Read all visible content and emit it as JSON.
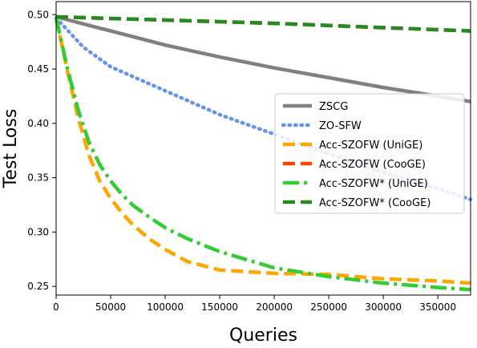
{
  "chart_data": {
    "type": "line",
    "xlabel": "Queries",
    "ylabel": "Test Loss",
    "xlim": [
      0,
      380000
    ],
    "ylim": [
      0.242,
      0.512
    ],
    "x_ticks": [
      0,
      50000,
      100000,
      150000,
      200000,
      250000,
      300000,
      350000
    ],
    "x_tick_labels": [
      "0",
      "50000",
      "100000",
      "150000",
      "200000",
      "250000",
      "300000",
      "350000"
    ],
    "y_ticks": [
      0.25,
      0.3,
      0.35,
      0.4,
      0.45,
      0.5
    ],
    "y_tick_labels": [
      "0.25",
      "0.30",
      "0.35",
      "0.40",
      "0.45",
      "0.50"
    ],
    "grid": false,
    "legend_position": "right",
    "series": [
      {
        "name": "ZSCG",
        "color": "#808080",
        "style": "solid",
        "x": [
          0,
          50000,
          100000,
          150000,
          200000,
          250000,
          300000,
          350000,
          380000
        ],
        "y": [
          0.498,
          0.485,
          0.472,
          0.461,
          0.451,
          0.442,
          0.433,
          0.425,
          0.42
        ]
      },
      {
        "name": "ZO-SFW",
        "color": "#6495ED",
        "style": "dotted",
        "x": [
          0,
          25000,
          50000,
          100000,
          150000,
          200000,
          250000,
          300000,
          350000,
          380000
        ],
        "y": [
          0.497,
          0.47,
          0.452,
          0.43,
          0.408,
          0.39,
          0.372,
          0.355,
          0.34,
          0.33
        ]
      },
      {
        "name": "Acc-SZOFW (UniGE)",
        "color": "#FFA500",
        "style": "dashed",
        "x": [
          0,
          10000,
          20000,
          30000,
          40000,
          50000,
          60000,
          70000,
          85000,
          100000,
          120000,
          150000,
          200000,
          250000,
          300000,
          350000,
          380000
        ],
        "y": [
          0.497,
          0.45,
          0.406,
          0.371,
          0.347,
          0.331,
          0.318,
          0.307,
          0.294,
          0.284,
          0.273,
          0.265,
          0.262,
          0.261,
          0.257,
          0.255,
          0.253
        ]
      },
      {
        "name": "Acc-SZOFW (CooGE)",
        "color": "#FF4500",
        "style": "dashed",
        "x": [
          0,
          100000,
          200000,
          300000,
          380000
        ],
        "y": [
          0.498,
          0.495,
          0.492,
          0.488,
          0.485
        ]
      },
      {
        "name": "Acc-SZOFW* (UniGE)",
        "color": "#32CD32",
        "style": "dashdot",
        "x": [
          0,
          10000,
          20000,
          30000,
          40000,
          50000,
          60000,
          70000,
          85000,
          100000,
          120000,
          150000,
          200000,
          250000,
          300000,
          350000,
          380000
        ],
        "y": [
          0.497,
          0.452,
          0.413,
          0.383,
          0.362,
          0.347,
          0.335,
          0.325,
          0.314,
          0.304,
          0.294,
          0.282,
          0.267,
          0.259,
          0.253,
          0.249,
          0.247
        ]
      },
      {
        "name": "Acc-SZOFW* (CooGE)",
        "color": "#228B22",
        "style": "dashed",
        "x": [
          0,
          100000,
          200000,
          300000,
          380000
        ],
        "y": [
          0.498,
          0.495,
          0.492,
          0.488,
          0.485
        ]
      }
    ]
  }
}
